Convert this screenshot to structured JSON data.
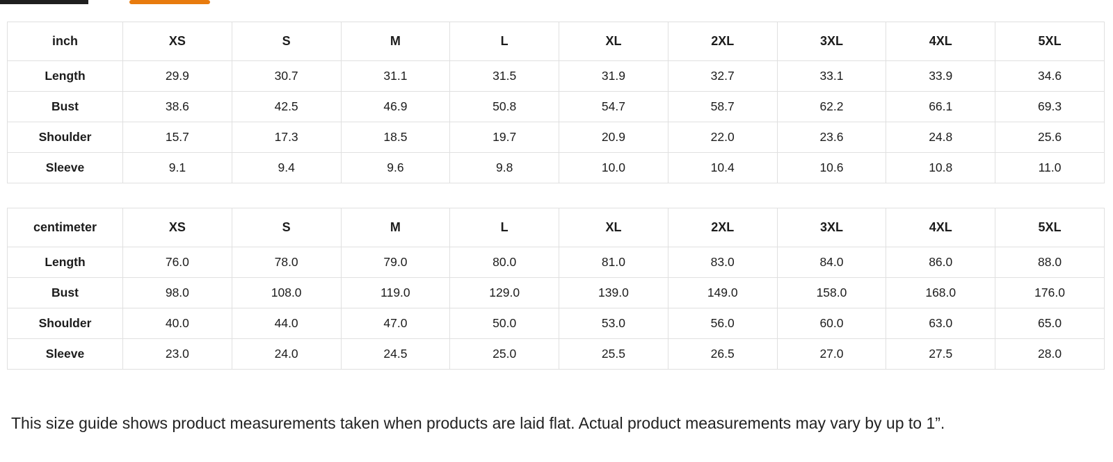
{
  "tabs": {
    "active_color": "#e87b0e",
    "inactive_color": "#1f1f1f"
  },
  "tables": [
    {
      "unit_label": "inch",
      "columns": [
        "XS",
        "S",
        "M",
        "L",
        "XL",
        "2XL",
        "3XL",
        "4XL",
        "5XL"
      ],
      "rows": [
        {
          "label": "Length",
          "values": [
            "29.9",
            "30.7",
            "31.1",
            "31.5",
            "31.9",
            "32.7",
            "33.1",
            "33.9",
            "34.6"
          ]
        },
        {
          "label": "Bust",
          "values": [
            "38.6",
            "42.5",
            "46.9",
            "50.8",
            "54.7",
            "58.7",
            "62.2",
            "66.1",
            "69.3"
          ]
        },
        {
          "label": "Shoulder",
          "values": [
            "15.7",
            "17.3",
            "18.5",
            "19.7",
            "20.9",
            "22.0",
            "23.6",
            "24.8",
            "25.6"
          ]
        },
        {
          "label": "Sleeve",
          "values": [
            "9.1",
            "9.4",
            "9.6",
            "9.8",
            "10.0",
            "10.4",
            "10.6",
            "10.8",
            "11.0"
          ]
        }
      ]
    },
    {
      "unit_label": "centimeter",
      "columns": [
        "XS",
        "S",
        "M",
        "L",
        "XL",
        "2XL",
        "3XL",
        "4XL",
        "5XL"
      ],
      "rows": [
        {
          "label": "Length",
          "values": [
            "76.0",
            "78.0",
            "79.0",
            "80.0",
            "81.0",
            "83.0",
            "84.0",
            "86.0",
            "88.0"
          ]
        },
        {
          "label": "Bust",
          "values": [
            "98.0",
            "108.0",
            "119.0",
            "129.0",
            "139.0",
            "149.0",
            "158.0",
            "168.0",
            "176.0"
          ]
        },
        {
          "label": "Shoulder",
          "values": [
            "40.0",
            "44.0",
            "47.0",
            "50.0",
            "53.0",
            "56.0",
            "60.0",
            "63.0",
            "65.0"
          ]
        },
        {
          "label": "Sleeve",
          "values": [
            "23.0",
            "24.0",
            "24.5",
            "25.0",
            "25.5",
            "26.5",
            "27.0",
            "27.5",
            "28.0"
          ]
        }
      ]
    }
  ],
  "footnote": "This size guide shows product measurements taken when products are laid flat. Actual product measurements may vary by up to 1”."
}
